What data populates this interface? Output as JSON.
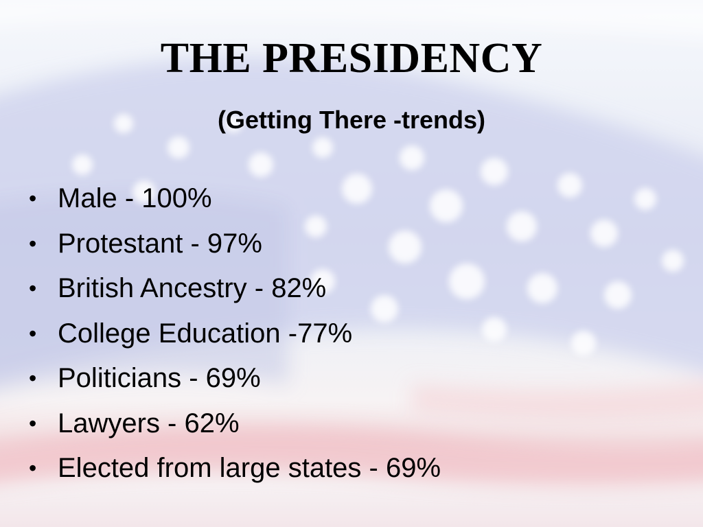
{
  "slide": {
    "title": "THE PRESIDENCY",
    "subtitle": "(Getting There -trends)",
    "bullet_glyph": "•",
    "bullets": [
      "Male - 100%",
      "Protestant - 97%",
      "British Ancestry - 82%",
      "College Education -77%",
      "Politicians - 69%",
      "Lawyers - 62%",
      "Elected from large states - 69%"
    ]
  },
  "colors": {
    "text": "#000000",
    "canton_blue": "#c9cdea",
    "stripe_red": "#e8b4bb",
    "star_white": "#ffffff"
  }
}
